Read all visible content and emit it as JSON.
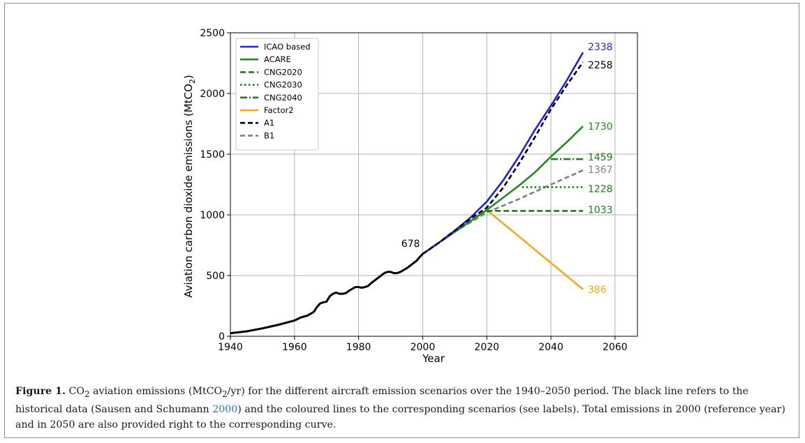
{
  "chart_data": {
    "type": "line",
    "xlabel": "Year",
    "ylabel": "Aviation carbon dioxide emissions (MtCO",
    "ylabel_sub": "2",
    "ylabel_end": ")",
    "xlim": [
      1940,
      2067
    ],
    "ylim": [
      0,
      2500
    ],
    "xticks": [
      "1940",
      "1960",
      "1980",
      "2000",
      "2020",
      "2040",
      "2060"
    ],
    "yticks": [
      "0",
      "500",
      "1000",
      "1500",
      "2000",
      "2500"
    ],
    "grid": true,
    "legend_position": "top-left",
    "legend": [
      "ICAO based",
      "ACARE",
      "CNG2020",
      "CNG2030",
      "CNG2040",
      "Factor2",
      "A1",
      "B1"
    ],
    "colors": {
      "icao": "#1f1fe0",
      "acare": "#1e8a1e",
      "cng": "#1e7a1e",
      "factor2": "#f5a623",
      "a1": "#000000",
      "b1": "#808080",
      "historic": "#000000"
    },
    "series": [
      {
        "name": "",
        "style": "solid-black",
        "x": [
          1940,
          1945,
          1950,
          1955,
          1960,
          1962,
          1964,
          1966,
          1967,
          1968,
          1969,
          1970,
          1971,
          1972,
          1973,
          1974,
          1975,
          1976,
          1977,
          1978,
          1979,
          1980,
          1981,
          1982,
          1983,
          1984,
          1985,
          1986,
          1987,
          1988,
          1989,
          1990,
          1991,
          1992,
          1993,
          1994,
          1995,
          1996,
          1997,
          1998,
          1999,
          2000
        ],
        "y": [
          25,
          40,
          65,
          95,
          130,
          155,
          170,
          200,
          240,
          270,
          280,
          285,
          330,
          350,
          360,
          350,
          350,
          355,
          375,
          390,
          405,
          405,
          400,
          405,
          415,
          440,
          460,
          480,
          500,
          520,
          530,
          530,
          520,
          520,
          530,
          545,
          560,
          580,
          600,
          620,
          650,
          678
        ]
      },
      {
        "name": "ICAO based",
        "style": "solid-blue",
        "x": [
          2000,
          2005,
          2010,
          2015,
          2020,
          2025,
          2030,
          2035,
          2040,
          2045,
          2050
        ],
        "y": [
          678,
          770,
          870,
          980,
          1110,
          1280,
          1480,
          1700,
          1900,
          2110,
          2338
        ]
      },
      {
        "name": "A1",
        "style": "dash-black",
        "x": [
          2000,
          2005,
          2010,
          2015,
          2020,
          2025,
          2030,
          2035,
          2040,
          2045,
          2050
        ],
        "y": [
          678,
          770,
          870,
          970,
          1060,
          1220,
          1420,
          1640,
          1870,
          2070,
          2258
        ]
      },
      {
        "name": "ACARE",
        "style": "solid-green",
        "x": [
          2000,
          2005,
          2010,
          2015,
          2020,
          2025,
          2030,
          2035,
          2040,
          2045,
          2050
        ],
        "y": [
          678,
          770,
          860,
          950,
          1040,
          1140,
          1240,
          1350,
          1480,
          1600,
          1730
        ]
      },
      {
        "name": "B1",
        "style": "dash-gray",
        "x": [
          2000,
          2010,
          2020,
          2030,
          2040,
          2050
        ],
        "y": [
          678,
          860,
          1020,
          1130,
          1250,
          1367
        ]
      },
      {
        "name": "CNG2020",
        "style": "dash-green",
        "x": [
          2020,
          2050
        ],
        "y": [
          1033,
          1033
        ]
      },
      {
        "name": "CNG2030",
        "style": "dot-green",
        "x": [
          2031,
          2050
        ],
        "y": [
          1228,
          1228
        ]
      },
      {
        "name": "CNG2040",
        "style": "dashdot-green",
        "x": [
          2040,
          2050
        ],
        "y": [
          1459,
          1459
        ]
      },
      {
        "name": "Factor2",
        "style": "solid-orange",
        "x": [
          2000,
          2010,
          2020,
          2050
        ],
        "y": [
          678,
          860,
          1040,
          386
        ]
      }
    ],
    "annotations": [
      {
        "text": "678",
        "x": 2000,
        "y": 678,
        "color": "#000000"
      },
      {
        "text": "2338",
        "x": 2050,
        "y": 2338,
        "color": "#1f1fe0"
      },
      {
        "text": "2258",
        "x": 2050,
        "y": 2258,
        "color": "#000000"
      },
      {
        "text": "1730",
        "x": 2050,
        "y": 1730,
        "color": "#1e8a1e"
      },
      {
        "text": "1459",
        "x": 2050,
        "y": 1459,
        "color": "#1e7a1e"
      },
      {
        "text": "1367",
        "x": 2050,
        "y": 1367,
        "color": "#808080"
      },
      {
        "text": "1228",
        "x": 2050,
        "y": 1228,
        "color": "#1e7a1e"
      },
      {
        "text": "1033",
        "x": 2050,
        "y": 1033,
        "color": "#1e7a1e"
      },
      {
        "text": "386",
        "x": 2050,
        "y": 386,
        "color": "#f5a623"
      }
    ]
  },
  "caption": {
    "label": "Figure 1.",
    "co2_prefix": " CO",
    "sub1": "2",
    "part1": " aviation emissions (MtCO",
    "sub2": "2",
    "part2": "/yr) for the different aircraft emission scenarios over the 1940–2050 period. The black line refers to the historical data (Sausen and Schumann ",
    "cite": "2000",
    "part3": ") and the coloured lines to the corresponding scenarios (see labels). Total emissions in 2000 (reference year) and in 2050 are also provided right to the corresponding curve."
  }
}
